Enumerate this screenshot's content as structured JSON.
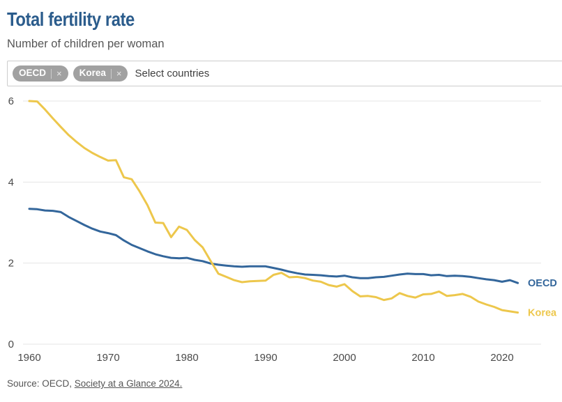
{
  "header": {
    "title": "Total fertility rate",
    "subtitle": "Number of children per woman"
  },
  "country_selector": {
    "placeholder": "Select countries",
    "selected": [
      {
        "label": "OECD",
        "remove_label": "×"
      },
      {
        "label": "Korea",
        "remove_label": "×"
      }
    ]
  },
  "footer": {
    "source_prefix": "Source: OECD, ",
    "source_link": "Society at a Glance 2024."
  },
  "colors": {
    "title": "#2b5c8c",
    "oecd_line": "#33669b",
    "korea_line": "#edc74c",
    "grid": "#e4e4e4",
    "tick_label": "#4a4a4a"
  },
  "chart_data": {
    "type": "line",
    "title": "Total fertility rate",
    "subtitle": "Number of children per woman",
    "xlabel": "",
    "ylabel": "Number of children per woman",
    "ylim": [
      0,
      6
    ],
    "yticks": [
      0,
      2,
      4,
      6
    ],
    "xticks": [
      1960,
      1970,
      1980,
      1990,
      2000,
      2010,
      2020
    ],
    "grid": true,
    "legend_position": "end-of-line labels",
    "x": [
      1960,
      1961,
      1962,
      1963,
      1964,
      1965,
      1966,
      1967,
      1968,
      1969,
      1970,
      1971,
      1972,
      1973,
      1974,
      1975,
      1976,
      1977,
      1978,
      1979,
      1980,
      1981,
      1982,
      1983,
      1984,
      1985,
      1986,
      1987,
      1988,
      1989,
      1990,
      1991,
      1992,
      1993,
      1994,
      1995,
      1996,
      1997,
      1998,
      1999,
      2000,
      2001,
      2002,
      2003,
      2004,
      2005,
      2006,
      2007,
      2008,
      2009,
      2010,
      2011,
      2012,
      2013,
      2014,
      2015,
      2016,
      2017,
      2018,
      2019,
      2020,
      2021,
      2022
    ],
    "series": [
      {
        "name": "OECD",
        "color": "#33669b",
        "values": [
          3.34,
          3.33,
          3.3,
          3.29,
          3.26,
          3.14,
          3.04,
          2.94,
          2.85,
          2.78,
          2.74,
          2.69,
          2.56,
          2.45,
          2.37,
          2.29,
          2.22,
          2.17,
          2.13,
          2.12,
          2.13,
          2.08,
          2.05,
          1.99,
          1.96,
          1.94,
          1.92,
          1.91,
          1.92,
          1.92,
          1.92,
          1.88,
          1.84,
          1.79,
          1.75,
          1.72,
          1.71,
          1.7,
          1.68,
          1.67,
          1.69,
          1.65,
          1.63,
          1.63,
          1.65,
          1.66,
          1.69,
          1.72,
          1.74,
          1.73,
          1.73,
          1.7,
          1.71,
          1.68,
          1.69,
          1.68,
          1.66,
          1.63,
          1.6,
          1.58,
          1.54,
          1.58,
          1.51
        ]
      },
      {
        "name": "Korea",
        "color": "#edc74c",
        "values": [
          6.0,
          5.99,
          5.79,
          5.57,
          5.36,
          5.16,
          4.99,
          4.84,
          4.72,
          4.62,
          4.53,
          4.54,
          4.12,
          4.07,
          3.77,
          3.43,
          3.0,
          2.99,
          2.64,
          2.9,
          2.82,
          2.57,
          2.39,
          2.06,
          1.74,
          1.66,
          1.58,
          1.53,
          1.55,
          1.56,
          1.57,
          1.71,
          1.76,
          1.65,
          1.66,
          1.63,
          1.57,
          1.54,
          1.46,
          1.42,
          1.48,
          1.31,
          1.18,
          1.19,
          1.16,
          1.09,
          1.13,
          1.26,
          1.19,
          1.15,
          1.23,
          1.24,
          1.3,
          1.19,
          1.21,
          1.24,
          1.17,
          1.05,
          0.98,
          0.92,
          0.84,
          0.81,
          0.78
        ]
      }
    ]
  }
}
